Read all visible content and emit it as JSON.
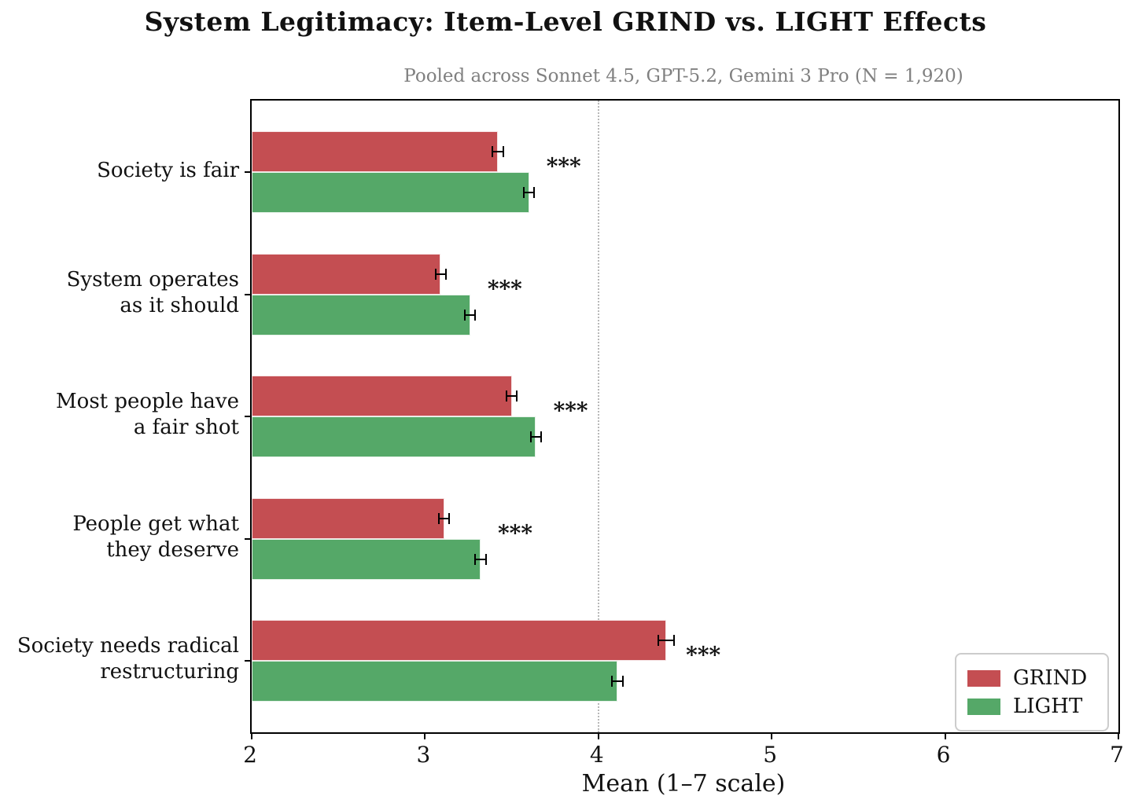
{
  "title": "System Legitimacy: Item-Level GRIND vs. LIGHT Effects",
  "subtitle": "Pooled across Sonnet 4.5, GPT-5.2, Gemini 3 Pro  (N = 1,920)",
  "colors": {
    "grind": "#c44e52",
    "light": "#55a868",
    "subtitle_gray": "#808080",
    "reference_line": "#b8b8b8",
    "axis": "#000000"
  },
  "chart_data": {
    "type": "bar",
    "orientation": "horizontal",
    "title": "System Legitimacy: Item-Level GRIND vs. LIGHT Effects",
    "subtitle": "Pooled across Sonnet 4.5, GPT-5.2, Gemini 3 Pro  (N = 1,920)",
    "categories": [
      "Society is fair",
      "System operates\nas it should",
      "Most people have\na fair shot",
      "People get what\nthey deserve",
      "Society needs radical\nrestructuring"
    ],
    "series": [
      {
        "name": "GRIND",
        "color": "#c44e52",
        "values": [
          3.42,
          3.09,
          3.5,
          3.11,
          4.39
        ],
        "errors": [
          0.03,
          0.03,
          0.03,
          0.03,
          0.045
        ]
      },
      {
        "name": "LIGHT",
        "color": "#55a868",
        "values": [
          3.6,
          3.26,
          3.64,
          3.32,
          4.11
        ],
        "errors": [
          0.03,
          0.03,
          0.03,
          0.03,
          0.03
        ]
      }
    ],
    "significance": [
      "***",
      "***",
      "***",
      "***",
      "***"
    ],
    "xlabel": "Mean (1–7 scale)",
    "xlim": [
      2,
      7
    ],
    "xticks": [
      "2",
      "3",
      "4",
      "5",
      "6",
      "7"
    ],
    "reference_line_x": 4,
    "grid": "single dotted vertical reference line at 4",
    "legend": {
      "position": "lower right",
      "entries": [
        "GRIND",
        "LIGHT"
      ]
    }
  }
}
